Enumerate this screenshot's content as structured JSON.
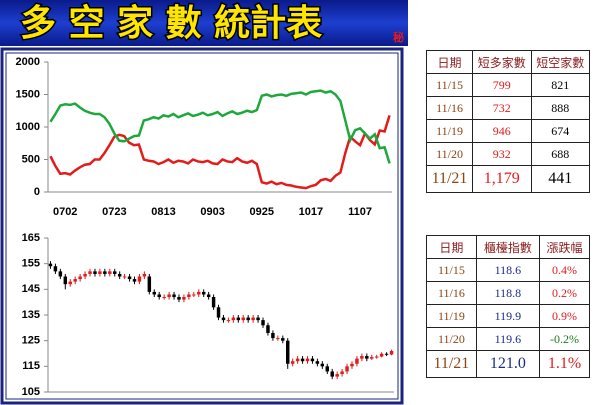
{
  "header": {
    "title": "多 空 家 數 統計表",
    "badge": "秘"
  },
  "chart_data": [
    {
      "type": "line",
      "categories": [
        null,
        null,
        null,
        "0702",
        null,
        null,
        null,
        null,
        null,
        null,
        null,
        null,
        null,
        "0723",
        null,
        null,
        null,
        null,
        null,
        null,
        null,
        null,
        null,
        "0813",
        null,
        null,
        null,
        null,
        null,
        null,
        null,
        null,
        null,
        "0903",
        null,
        null,
        null,
        null,
        null,
        null,
        null,
        null,
        null,
        "0925",
        null,
        null,
        null,
        null,
        null,
        null,
        null,
        null,
        null,
        "1017",
        null,
        null,
        null,
        null,
        null,
        null,
        null,
        null,
        null,
        "1107",
        null,
        null,
        null,
        null,
        null,
        null
      ],
      "series": [
        {
          "color": "#e31b1b",
          "values": [
            550,
            400,
            280,
            290,
            270,
            330,
            380,
            420,
            430,
            500,
            500,
            600,
            720,
            850,
            880,
            860,
            760,
            720,
            730,
            500,
            480,
            470,
            430,
            460,
            500,
            450,
            480,
            470,
            440,
            500,
            470,
            460,
            480,
            440,
            430,
            500,
            470,
            460,
            520,
            470,
            450,
            480,
            430,
            150,
            130,
            160,
            120,
            140,
            110,
            100,
            80,
            70,
            60,
            90,
            110,
            180,
            200,
            170,
            250,
            300,
            600,
            850,
            780,
            720,
            900,
            799,
            732,
            946,
            932,
            1179
          ]
        },
        {
          "color": "#1ea83c",
          "values": [
            1080,
            1200,
            1330,
            1350,
            1340,
            1360,
            1300,
            1250,
            1220,
            1200,
            1200,
            1150,
            1050,
            900,
            790,
            780,
            820,
            860,
            870,
            1100,
            1120,
            1150,
            1130,
            1180,
            1160,
            1200,
            1150,
            1180,
            1210,
            1170,
            1190,
            1220,
            1180,
            1200,
            1230,
            1170,
            1210,
            1240,
            1200,
            1220,
            1250,
            1230,
            1260,
            1480,
            1500,
            1470,
            1490,
            1500,
            1480,
            1510,
            1520,
            1530,
            1500,
            1540,
            1550,
            1560,
            1530,
            1550,
            1500,
            1400,
            1100,
            800,
            950,
            980,
            900,
            821,
            888,
            674,
            688,
            441
          ]
        }
      ],
      "ylim": [
        0,
        2000
      ],
      "yticks": [
        0,
        500,
        1000,
        1500,
        2000
      ],
      "grid": false
    },
    {
      "type": "candlestick",
      "up_color": "#e31b1b",
      "down_color": "#000000",
      "open": [
        155,
        154,
        152,
        150,
        147,
        148,
        149,
        150,
        151,
        152,
        151,
        152,
        151,
        152,
        151,
        150,
        150,
        149,
        148,
        150,
        150,
        144,
        143,
        142,
        142,
        143,
        142,
        141,
        142,
        143,
        143,
        144,
        143,
        142,
        138,
        134,
        133,
        133,
        134,
        133,
        134,
        133,
        134,
        133,
        131,
        128,
        126,
        126,
        125,
        116,
        117,
        118,
        117,
        118,
        117,
        116,
        115,
        113,
        111,
        112,
        113,
        115,
        116,
        118,
        119,
        118,
        118.6,
        118.8,
        119.9,
        119.6
      ],
      "high": [
        156,
        155,
        153,
        151,
        149,
        150,
        151,
        152,
        153,
        153,
        153,
        153,
        153,
        153,
        152,
        151,
        151,
        150,
        151,
        152,
        151,
        145,
        144,
        143,
        144,
        144,
        143,
        143,
        144,
        144,
        145,
        145,
        144,
        143,
        139,
        135,
        134,
        135,
        135,
        135,
        135,
        135,
        135,
        134,
        132,
        129,
        127,
        127,
        126,
        118,
        119,
        119,
        119,
        119,
        118,
        117,
        116,
        114,
        113,
        114,
        116,
        117,
        119,
        120,
        120,
        119.5,
        119.5,
        120.5,
        120.5,
        121.5
      ],
      "low": [
        153,
        151,
        149,
        145,
        146,
        147,
        148,
        149,
        150,
        150,
        150,
        150,
        150,
        150,
        149,
        149,
        148,
        147,
        147,
        149,
        143,
        142,
        141,
        141,
        141,
        141,
        140,
        140,
        141,
        142,
        142,
        142,
        141,
        137,
        133,
        132,
        132,
        132,
        132,
        132,
        132,
        132,
        132,
        130,
        127,
        125,
        125,
        124,
        114,
        115,
        116,
        116,
        116,
        116,
        115,
        114,
        112,
        110,
        110,
        111,
        112,
        114,
        115,
        117,
        117,
        117.5,
        118,
        118.5,
        119,
        119.3
      ],
      "close": [
        154,
        152,
        150,
        147,
        148,
        149,
        150,
        151,
        152,
        151,
        152,
        151,
        152,
        151,
        150,
        150,
        149,
        148,
        150,
        151,
        144,
        143,
        142,
        142,
        143,
        142,
        141,
        142,
        143,
        143,
        144,
        143,
        142,
        138,
        134,
        133,
        133,
        134,
        133,
        134,
        133,
        134,
        133,
        131,
        128,
        126,
        126,
        125,
        116,
        117,
        118,
        117,
        118,
        117,
        116,
        115,
        113,
        111,
        112,
        113,
        115,
        116,
        118,
        119,
        118,
        118.6,
        118.8,
        119.9,
        119.6,
        121.0
      ],
      "ylim": [
        105,
        165
      ],
      "yticks": [
        105,
        115,
        125,
        135,
        145,
        155,
        165
      ],
      "grid": false
    }
  ],
  "tables": [
    {
      "headers": [
        "日期",
        "短多家數",
        "短空家數"
      ],
      "rows": [
        [
          "11/15",
          "799",
          "821"
        ],
        [
          "11/16",
          "732",
          "888"
        ],
        [
          "11/19",
          "946",
          "674"
        ],
        [
          "11/20",
          "932",
          "688"
        ],
        [
          "11/21",
          "1,179",
          "441"
        ]
      ]
    },
    {
      "headers": [
        "日期",
        "櫃檯指數",
        "漲跌幅"
      ],
      "rows": [
        [
          "11/15",
          "118.6",
          "0.4%"
        ],
        [
          "11/16",
          "118.8",
          "0.2%"
        ],
        [
          "11/19",
          "119.9",
          "0.9%"
        ],
        [
          "11/20",
          "119.6",
          "-0.2%"
        ],
        [
          "11/21",
          "121.0",
          "1.1%"
        ]
      ]
    }
  ]
}
